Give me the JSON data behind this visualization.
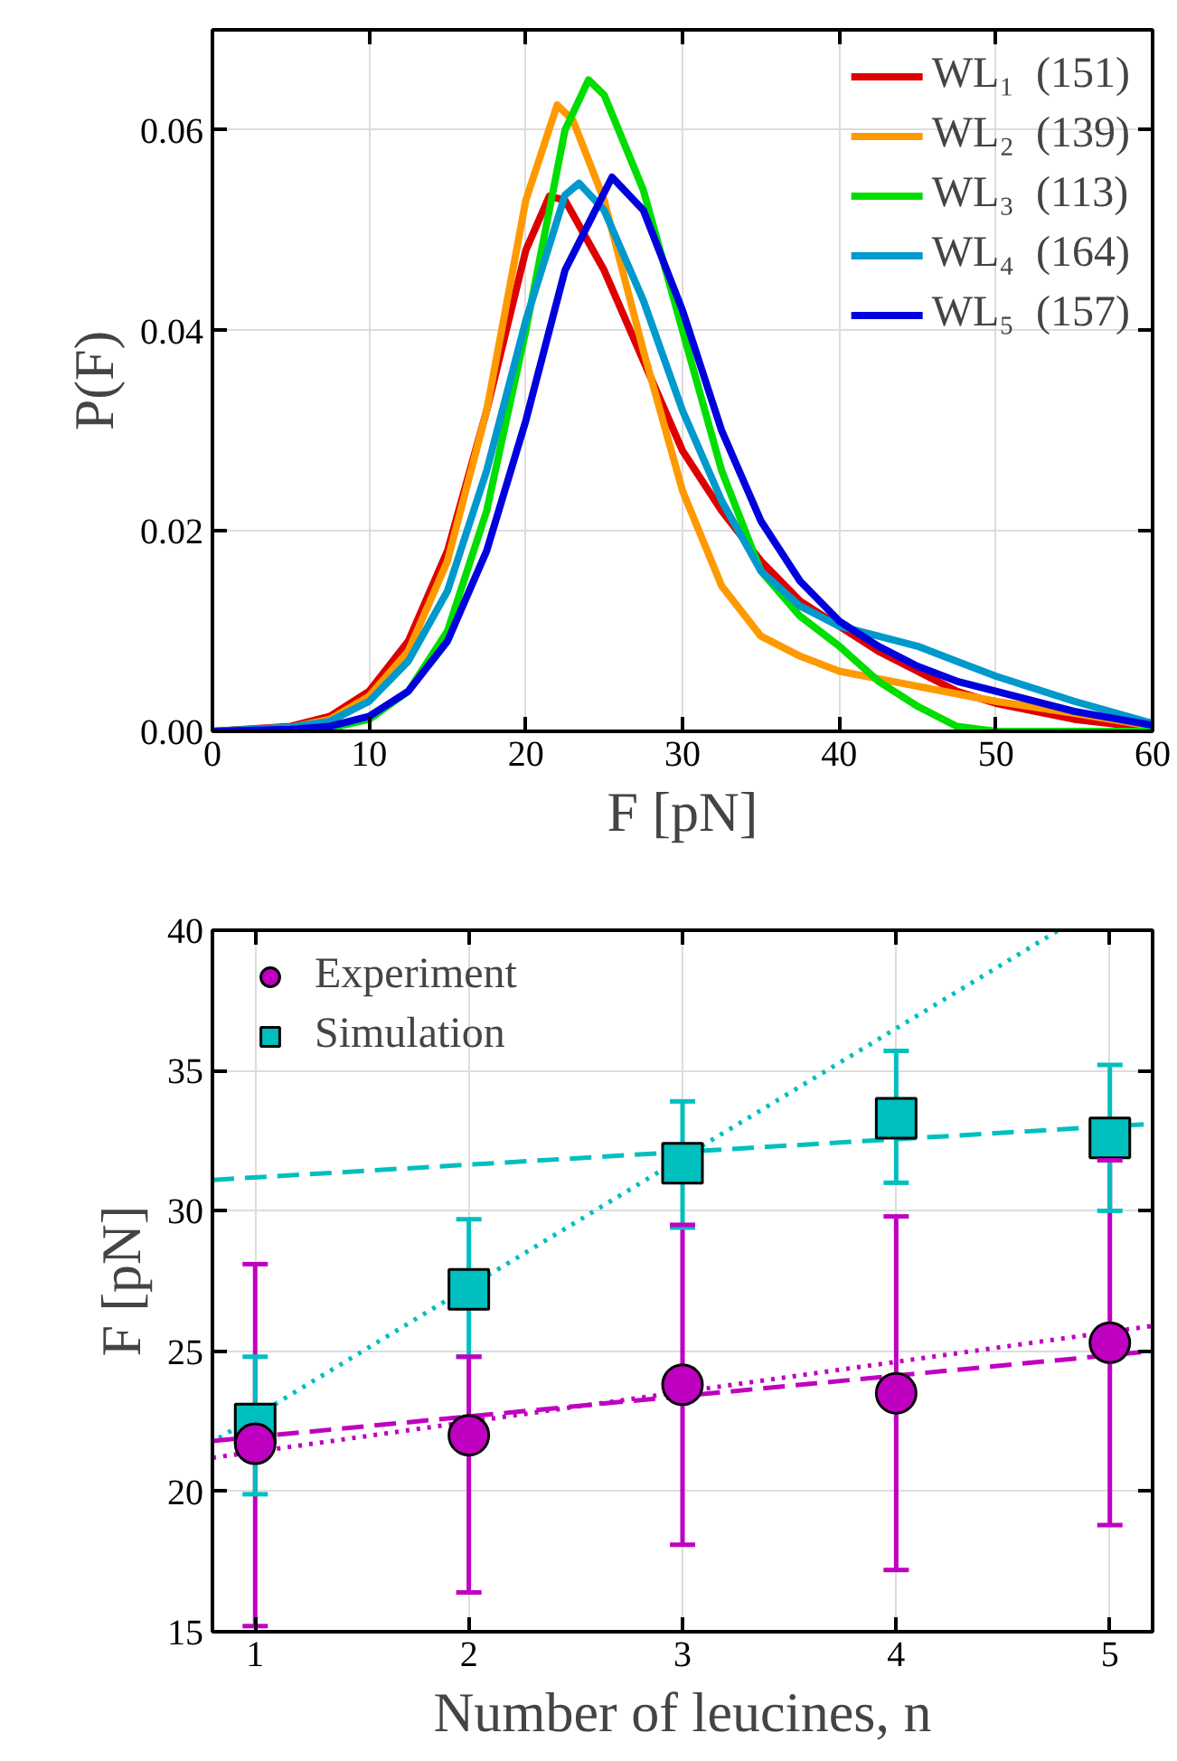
{
  "chart_data": [
    {
      "type": "line",
      "xlabel": "F [pN]",
      "ylabel": "P(F)",
      "xlim": [
        0,
        60
      ],
      "ylim": [
        0,
        0.07
      ],
      "xticks": [
        0,
        10,
        20,
        30,
        40,
        50,
        60
      ],
      "yticks": [
        {
          "value": 0,
          "label": "0.00"
        },
        {
          "value": 0.02,
          "label": "0.02"
        },
        {
          "value": 0.04,
          "label": "0.04"
        },
        {
          "value": 0.06,
          "label": "0.06"
        }
      ],
      "grid": true,
      "legend": "top right",
      "series": [
        {
          "name": "WL₁  (151)",
          "color": "#dd0000",
          "x": [
            0,
            5,
            7.5,
            10,
            12.5,
            15,
            17.5,
            20,
            21.5,
            22.5,
            25,
            27.5,
            30,
            32.5,
            35,
            37.5,
            40,
            42.5,
            45,
            47.5,
            50,
            55,
            60
          ],
          "values": [
            0,
            0.0005,
            0.0015,
            0.004,
            0.009,
            0.018,
            0.032,
            0.048,
            0.0534,
            0.053,
            0.046,
            0.037,
            0.028,
            0.022,
            0.017,
            0.013,
            0.0105,
            0.008,
            0.006,
            0.004,
            0.0028,
            0.0012,
            0.0003
          ]
        },
        {
          "name": "WL₂  (139)",
          "color": "#ff9900",
          "x": [
            0,
            5,
            7.5,
            10,
            12.5,
            15,
            17.5,
            20,
            22,
            23,
            25,
            27.5,
            30,
            32.5,
            35,
            37.5,
            40,
            45,
            50,
            55,
            60
          ],
          "values": [
            0,
            0.0004,
            0.0012,
            0.0035,
            0.008,
            0.017,
            0.032,
            0.053,
            0.0625,
            0.061,
            0.053,
            0.038,
            0.024,
            0.0145,
            0.0095,
            0.0075,
            0.006,
            0.0045,
            0.003,
            0.0018,
            0.0005
          ]
        },
        {
          "name": "WL₃  (113)",
          "color": "#00dd00",
          "x": [
            0,
            5,
            7.5,
            10,
            12.5,
            15,
            17.5,
            20,
            22.5,
            24,
            25,
            27.5,
            30,
            32.5,
            35,
            37.5,
            40,
            42.5,
            45,
            47.5,
            50,
            60
          ],
          "values": [
            0,
            0,
            0.0003,
            0.0012,
            0.004,
            0.01,
            0.022,
            0.04,
            0.06,
            0.065,
            0.0635,
            0.054,
            0.04,
            0.026,
            0.016,
            0.0115,
            0.0085,
            0.005,
            0.0025,
            0.0005,
            0,
            0
          ]
        },
        {
          "name": "WL₄  (164)",
          "color": "#0099cc",
          "x": [
            0,
            5,
            7.5,
            10,
            12.5,
            15,
            17.5,
            20,
            22.5,
            23.4,
            25,
            27.5,
            30,
            32.5,
            35,
            37.5,
            40,
            42.5,
            45,
            47.5,
            50,
            55,
            60
          ],
          "values": [
            0,
            0.0004,
            0.001,
            0.003,
            0.007,
            0.014,
            0.026,
            0.041,
            0.0535,
            0.0547,
            0.052,
            0.043,
            0.032,
            0.023,
            0.016,
            0.0125,
            0.0105,
            0.0095,
            0.0085,
            0.007,
            0.0055,
            0.003,
            0.0008
          ]
        },
        {
          "name": "WL₅  (157)",
          "color": "#0000dd",
          "x": [
            0,
            5,
            7.5,
            10,
            12.5,
            15,
            17.5,
            20,
            22.5,
            25.5,
            27.5,
            30,
            32.5,
            35,
            37.5,
            40,
            42.5,
            45,
            47.5,
            50,
            55,
            60
          ],
          "values": [
            0,
            0.0002,
            0.0005,
            0.0015,
            0.004,
            0.009,
            0.018,
            0.031,
            0.046,
            0.0553,
            0.052,
            0.042,
            0.03,
            0.021,
            0.015,
            0.011,
            0.0085,
            0.0065,
            0.005,
            0.004,
            0.002,
            0.0006
          ]
        }
      ]
    },
    {
      "type": "scatter",
      "xlabel": "Number of leucines, n",
      "ylabel": "F [pN]",
      "xlim": [
        0.8,
        5.2
      ],
      "ylim": [
        15,
        40
      ],
      "xticks": [
        1,
        2,
        3,
        4,
        5
      ],
      "yticks": [
        15,
        20,
        25,
        30,
        35,
        40
      ],
      "grid": true,
      "legend": "top left",
      "series": [
        {
          "type": "line",
          "color": "#00bfbf",
          "line_style": "dashed",
          "x": [
            0.8,
            5.2
          ],
          "values": [
            31.1,
            33.1
          ]
        },
        {
          "type": "line",
          "color": "#00bfbf",
          "line_style": "dotted",
          "x": [
            0.83,
            4.76
          ],
          "values": [
            21.9,
            40.0
          ]
        },
        {
          "type": "line",
          "color": "#c000c0",
          "line_style": "dashed",
          "x": [
            0.8,
            5.2
          ],
          "values": [
            21.8,
            25.0
          ]
        },
        {
          "type": "line",
          "color": "#c000c0",
          "line_style": "dotted",
          "x": [
            0.8,
            5.2
          ],
          "values": [
            21.2,
            25.9
          ]
        },
        {
          "name": "Experiment",
          "color": "#c000c0",
          "marker": "circle",
          "x": [
            1,
            2,
            3,
            4,
            5
          ],
          "values": [
            21.7,
            22.0,
            23.8,
            23.5,
            25.3
          ],
          "errors": [
            [
              15.2,
              28.1
            ],
            [
              16.4,
              24.8
            ],
            [
              18.1,
              29.5
            ],
            [
              17.2,
              29.8
            ],
            [
              18.8,
              31.8
            ]
          ]
        },
        {
          "name": "Simulation",
          "color": "#00bfbf",
          "marker": "square",
          "x": [
            1,
            2,
            3,
            4,
            5
          ],
          "values": [
            22.4,
            27.2,
            31.7,
            33.3,
            32.6
          ],
          "errors": [
            [
              19.9,
              24.8
            ],
            [
              24.8,
              29.7
            ],
            [
              29.4,
              33.9
            ],
            [
              31.0,
              35.7
            ],
            [
              30.0,
              35.2
            ]
          ]
        }
      ]
    }
  ]
}
